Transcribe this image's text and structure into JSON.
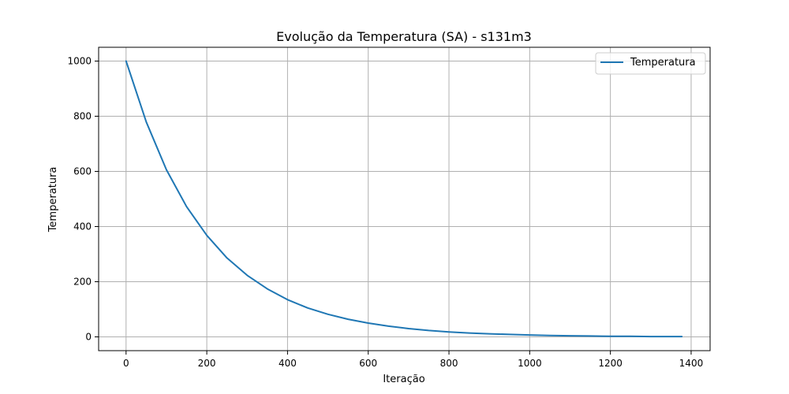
{
  "chart_data": {
    "type": "line",
    "title": "Evolução da Temperatura (SA) - s131m3",
    "xlabel": "Iteração",
    "ylabel": "Temperatura",
    "xlim": [
      -68,
      1447
    ],
    "ylim": [
      -50,
      1050
    ],
    "xticks": [
      0,
      200,
      400,
      600,
      800,
      1000,
      1200,
      1400
    ],
    "yticks": [
      0,
      200,
      400,
      600,
      800,
      1000
    ],
    "grid": true,
    "legend_position": "top-right",
    "series": [
      {
        "name": "Temperatura",
        "color": "#1f77b4",
        "x": [
          0,
          50,
          100,
          150,
          200,
          250,
          300,
          350,
          400,
          450,
          500,
          550,
          600,
          650,
          700,
          750,
          800,
          850,
          900,
          950,
          1000,
          1050,
          1100,
          1150,
          1200,
          1250,
          1300,
          1350,
          1377
        ],
        "y": [
          1000,
          779,
          606,
          472,
          368,
          286,
          223,
          174,
          135,
          105,
          82,
          64,
          50,
          39,
          30,
          23,
          18,
          14,
          11,
          9,
          7,
          5,
          4,
          3,
          2,
          2,
          1,
          1,
          1
        ]
      }
    ]
  }
}
